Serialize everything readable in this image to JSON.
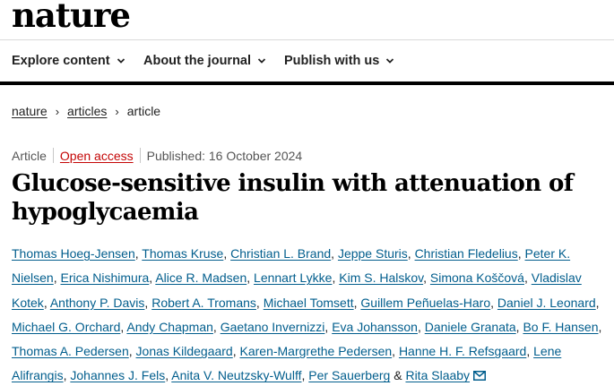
{
  "site": {
    "logo": "nature"
  },
  "nav": {
    "items": [
      {
        "label": "Explore content"
      },
      {
        "label": "About the journal"
      },
      {
        "label": "Publish with us"
      }
    ]
  },
  "breadcrumb": {
    "items": [
      "nature",
      "articles"
    ],
    "current": "article",
    "separator": "›"
  },
  "article": {
    "type": "Article",
    "access": "Open access",
    "published": "Published: 16 October 2024",
    "title_line1": "Glucose-sensitive insulin with attenuation of",
    "title_line2": "hypoglycaemia",
    "authors": [
      "Thomas Hoeg-Jensen",
      "Thomas Kruse",
      "Christian L. Brand",
      "Jeppe Sturis",
      "Christian Fledelius",
      "Peter K. Nielsen",
      "Erica Nishimura",
      "Alice R. Madsen",
      "Lennart Lykke",
      "Kim S. Halskov",
      "Simona Koščová",
      "Vladislav Kotek",
      "Anthony P. Davis",
      "Robert A. Tromans",
      "Michael Tomsett",
      "Guillem Peñuelas-Haro",
      "Daniel J. Leonard",
      "Michael G. Orchard",
      "Andy Chapman",
      "Gaetano Invernizzi",
      "Eva Johansson",
      "Daniele Granata",
      "Bo F. Hansen",
      "Thomas A. Pedersen",
      "Jonas Kildegaard",
      "Karen-Margrethe Pedersen",
      "Hanne H. F. Refsgaard",
      "Lene Alifrangis",
      "Johannes J. Fels",
      "Anita V. Neutzsky-Wulff",
      "Per Sauerberg",
      "Rita Slaaby"
    ],
    "author_separator": ", ",
    "last_separator": " & ",
    "corresponding_icon": "mail-icon"
  },
  "colors": {
    "link": "#025e8d",
    "open_access": "#c40606",
    "title": "#000000"
  }
}
